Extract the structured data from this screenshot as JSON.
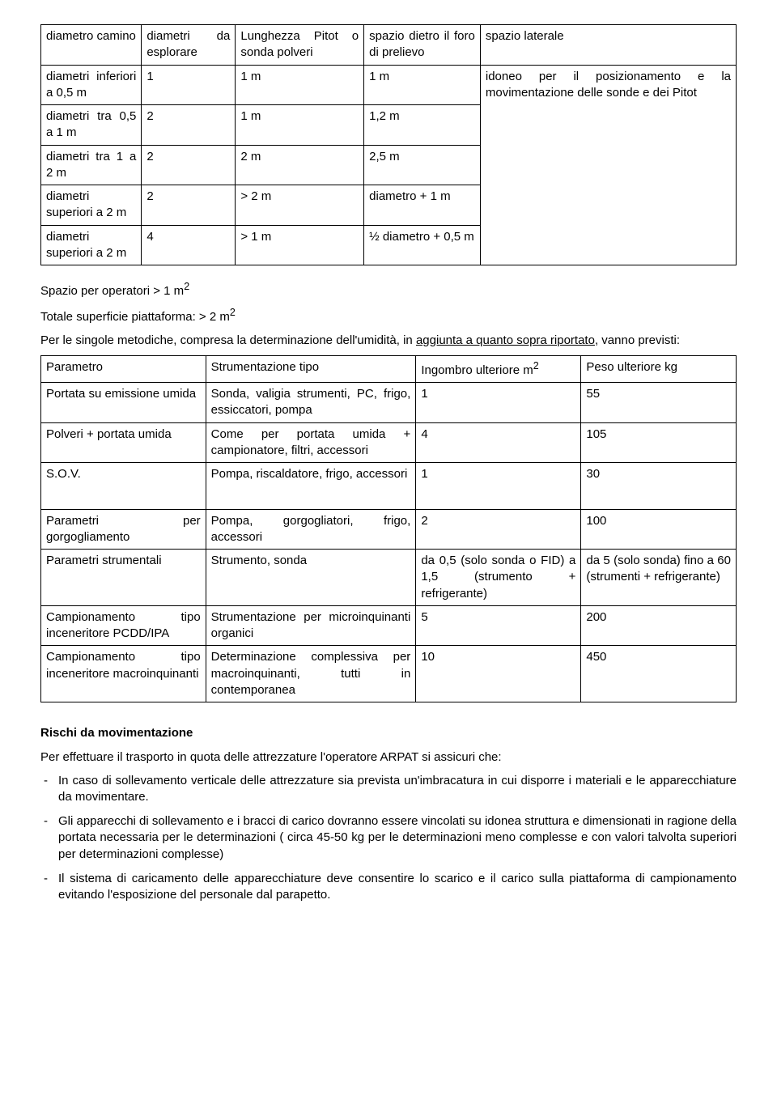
{
  "table1": {
    "headers": [
      "diametro camino",
      "diametri da esplorare",
      "Lunghezza Pitot o sonda polveri",
      "spazio dietro il foro di prelievo",
      "spazio laterale"
    ],
    "rows": [
      [
        "diametri inferiori a 0,5 m",
        "1",
        "1 m",
        "1 m"
      ],
      [
        "diametri tra 0,5 a 1 m",
        "2",
        "1 m",
        "1,2 m"
      ],
      [
        "diametri tra 1 a 2 m",
        "2",
        "2 m",
        "2,5 m"
      ],
      [
        "diametri superiori a 2 m",
        "2",
        "> 2 m",
        "diametro + 1 m"
      ],
      [
        "diametri superiori a 2 m",
        "4",
        "> 1 m",
        "½ diametro + 0,5 m"
      ]
    ],
    "merged_last": "idoneo per il posizionamento e la movimentazione delle sonde e dei Pitot"
  },
  "mid": {
    "l1a": "Spazio per operatori > 1 m",
    "l1b": "2",
    "l2a": "Totale superficie piattaforma: > 2 m",
    "l2b": "2",
    "l3a": "Per le singole metodiche, compresa la determinazione dell'umidità, in ",
    "l3u": "aggiunta a quanto sopra riportato",
    "l3b": ", vanno previsti:"
  },
  "table2": {
    "head": [
      "Parametro",
      "Strumentazione tipo",
      "Ingombro ulteriore m",
      "Peso ulteriore kg"
    ],
    "rows": [
      [
        "Portata su emissione umida",
        "Sonda, valigia strumenti, PC, frigo, essiccatori, pompa",
        "1",
        "55"
      ],
      [
        "Polveri + portata umida",
        "Come per portata umida + campionatore, filtri, accessori",
        "4",
        "105"
      ],
      [
        "S.O.V.",
        "Pompa, riscaldatore, frigo, accessori",
        "1",
        "30"
      ],
      [
        "Parametri per gorgogliamento",
        "Pompa, gorgogliatori, frigo, accessori",
        "2",
        "100"
      ],
      [
        "Parametri strumentali",
        "Strumento, sonda",
        "da 0,5 (solo sonda o FID) a 1,5 (strumento + refrigerante)",
        "da 5 (solo sonda) fino a 60 (strumenti + refrigerante)"
      ],
      [
        "Campionamento tipo inceneritore PCDD/IPA",
        "Strumentazione per microinquinanti organici",
        "5",
        "200"
      ],
      [
        "Campionamento tipo inceneritore macroinquinanti",
        "Determinazione complessiva per macroinquinanti, tutti in contemporanea",
        "10",
        "450"
      ]
    ]
  },
  "sec": {
    "title": "Rischi da movimentazione",
    "intro": "Per effettuare il trasporto in quota delle attrezzature l'operatore ARPAT si assicuri che:",
    "items": [
      "In caso di sollevamento verticale delle attrezzature sia prevista un'imbracatura in cui disporre i materiali e le apparecchiature da movimentare.",
      "Gli apparecchi di sollevamento e i bracci di carico dovranno essere vincolati su idonea struttura e dimensionati in ragione della portata necessaria per le determinazioni ( circa 45-50 kg per le determinazioni meno complesse e con valori talvolta superiori per determinazioni complesse)",
      "Il sistema di caricamento delle apparecchiature deve consentire lo scarico e il carico sulla piattaforma di campionamento evitando l'esposizione del personale dal parapetto."
    ]
  }
}
